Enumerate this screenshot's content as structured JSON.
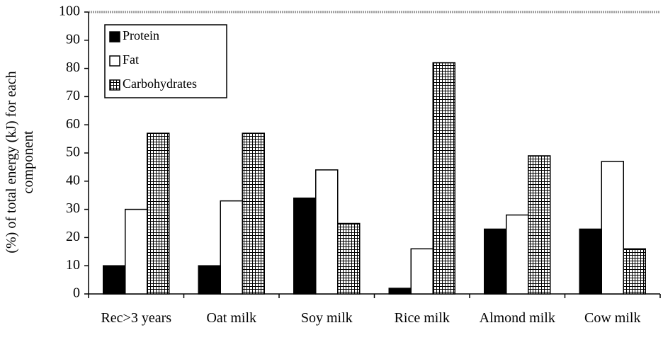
{
  "chart_data": {
    "type": "bar",
    "y_label": "(%) of total energy (kJ) for each component",
    "categories": [
      "Rec>3 years",
      "Oat milk",
      "Soy milk",
      "Rice milk",
      "Almond milk",
      "Cow milk"
    ],
    "series": [
      {
        "name": "Protein",
        "color": "#000000",
        "values": [
          10,
          10,
          34,
          2,
          23,
          23
        ]
      },
      {
        "name": "Fat",
        "color": "#ffffff",
        "values": [
          30,
          33,
          44,
          16,
          28,
          47
        ]
      },
      {
        "name": "Carbohydrates",
        "color": "#ffffff",
        "hatch": "grid",
        "values": [
          57,
          57,
          25,
          82,
          49,
          16
        ]
      }
    ],
    "ylim": [
      0,
      100
    ],
    "yticks": [
      0,
      10,
      20,
      30,
      40,
      50,
      60,
      70,
      80,
      90,
      100
    ],
    "legend": "upper-left"
  }
}
